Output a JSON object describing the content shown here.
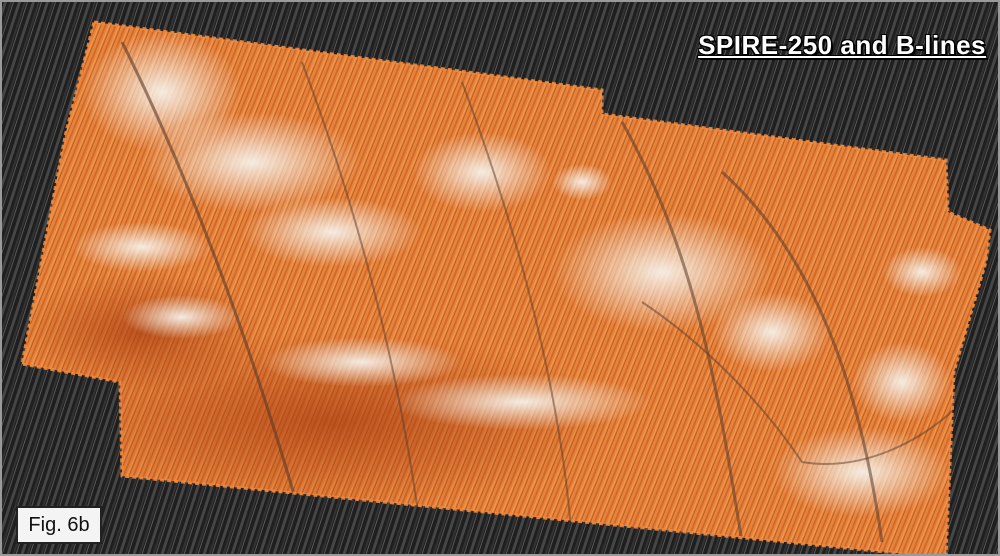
{
  "figure": {
    "title": "SPIRE-250 and B-lines",
    "label": "Fig. 6b"
  },
  "colors": {
    "background": "#242424",
    "map_base": "#e8833a",
    "map_dark": "#b24a1a",
    "map_highlight": "#f4ece2",
    "streamline_dark": "#3a3a3a",
    "streamline_light": "#6a6a6a",
    "frame_border": "#9a9a9a"
  }
}
